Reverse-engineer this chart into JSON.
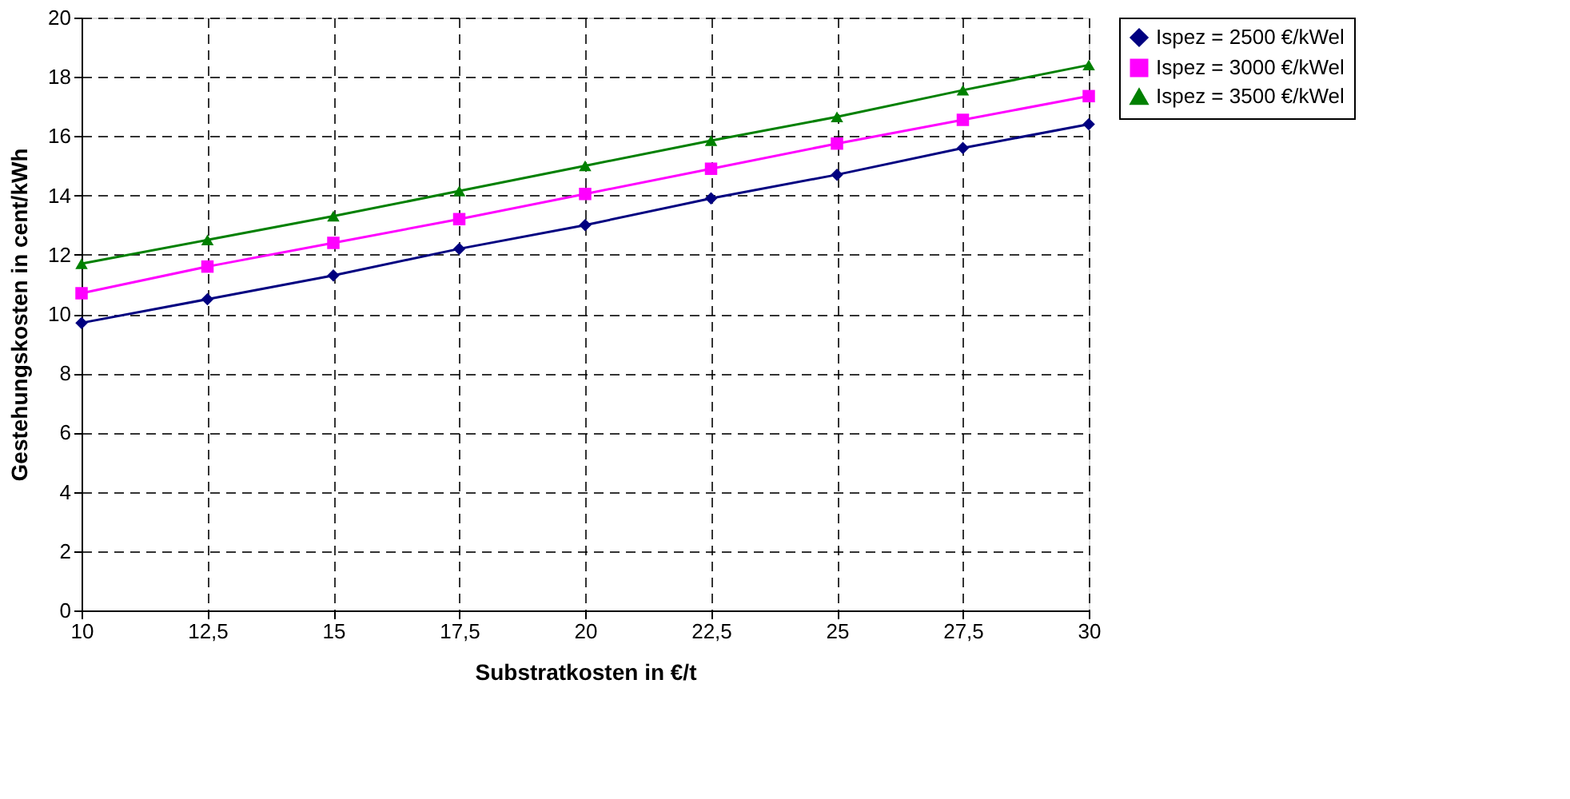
{
  "chart_data": {
    "type": "line",
    "xlabel": "Substratkosten in €/t",
    "ylabel": "Gestehungskosten in cent/kWh",
    "x": [
      10,
      12.5,
      15,
      17.5,
      20,
      22.5,
      25,
      27.5,
      30
    ],
    "series": [
      {
        "name": "Ispez = 2500 €/kWel",
        "color": "#000080",
        "marker": "diamond",
        "values": [
          9.7,
          10.5,
          11.3,
          12.2,
          13.0,
          13.9,
          14.7,
          15.6,
          16.4
        ]
      },
      {
        "name": "Ispez = 3000 €/kWel",
        "color": "#ff00ff",
        "marker": "square",
        "values": [
          10.7,
          11.6,
          12.4,
          13.2,
          14.05,
          14.9,
          15.75,
          16.55,
          17.35
        ]
      },
      {
        "name": "Ispez = 3500 €/kWel",
        "color": "#008000",
        "marker": "triangle",
        "values": [
          11.7,
          12.5,
          13.3,
          14.15,
          15.0,
          15.85,
          16.65,
          17.55,
          18.4
        ]
      }
    ],
    "xlim": [
      10,
      30
    ],
    "xticks": [
      10,
      {
        "value": 12.5,
        "label": "12,5"
      },
      15,
      {
        "value": 17.5,
        "label": "17,5"
      },
      20,
      {
        "value": 22.5,
        "label": "22,5"
      },
      25,
      {
        "value": 27.5,
        "label": "27,5"
      },
      30
    ],
    "ylim": [
      0,
      20
    ],
    "yticks": [
      0,
      2,
      4,
      6,
      8,
      10,
      12,
      14,
      16,
      18,
      20
    ],
    "grid": true,
    "legend": "right",
    "line_style": "solid"
  }
}
